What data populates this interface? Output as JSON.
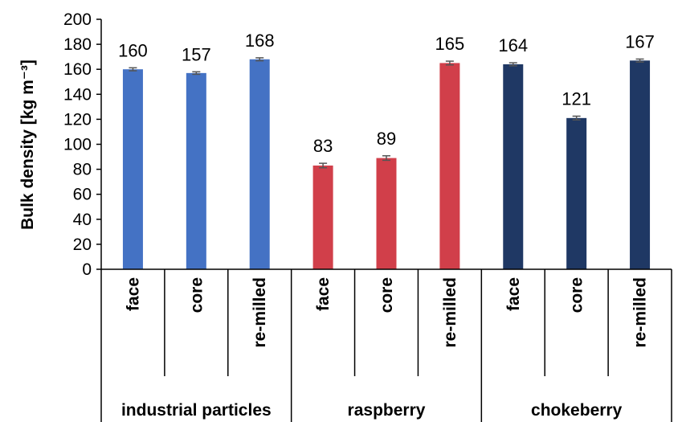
{
  "chart_data": {
    "type": "bar",
    "ylabel": "Bulk density [kg m⁻³]",
    "ylim": [
      0,
      200
    ],
    "yticks": [
      0,
      20,
      40,
      60,
      80,
      100,
      120,
      140,
      160,
      180,
      200
    ],
    "grid": false,
    "groups": [
      {
        "name": "industrial particles",
        "color": "#4472C4",
        "categories": [
          "face",
          "core",
          "re-milled"
        ],
        "values": [
          160,
          157,
          168
        ],
        "errors": [
          1.2,
          1.0,
          1.2
        ]
      },
      {
        "name": "raspberry",
        "color": "#D13F4A",
        "categories": [
          "face",
          "core",
          "re-milled"
        ],
        "values": [
          83,
          89,
          165
        ],
        "errors": [
          1.8,
          1.8,
          1.5
        ]
      },
      {
        "name": "chokeberry",
        "color": "#1F3864",
        "categories": [
          "face",
          "core",
          "re-milled"
        ],
        "values": [
          164,
          121,
          167
        ],
        "errors": [
          1.2,
          1.5,
          1.2
        ]
      }
    ]
  }
}
